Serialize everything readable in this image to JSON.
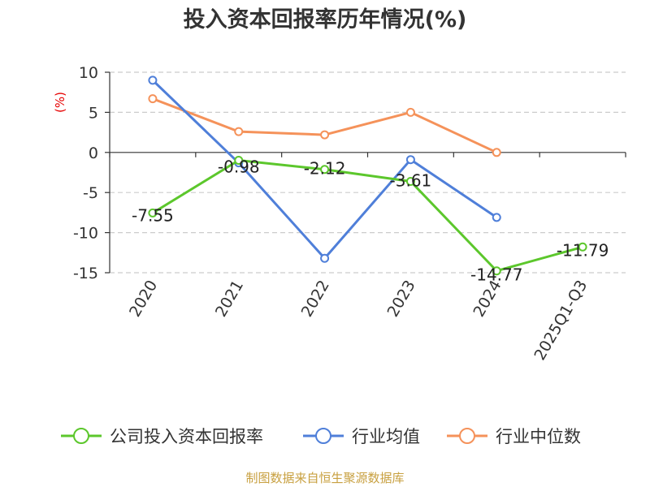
{
  "chart_data": {
    "type": "line",
    "title": "投入资本回报率历年情况(%)",
    "ylabel": "(%)",
    "ylabel_color": "#e60000",
    "categories": [
      "2020",
      "2021",
      "2022",
      "2023",
      "2024",
      "2025Q1-Q3"
    ],
    "ylim": [
      -15,
      10
    ],
    "yticks": [
      10,
      5,
      0,
      -5,
      -10,
      -15
    ],
    "ytick_labels": [
      "10",
      "5",
      "0",
      "-5",
      "-10",
      "-15"
    ],
    "grid": true,
    "legend_position": "bottom",
    "series": [
      {
        "name": "公司投入资本回报率",
        "color": "#5cc72c",
        "values": [
          -7.55,
          -0.98,
          -2.12,
          -3.61,
          -14.77,
          -11.79
        ],
        "labels": [
          "-7.55",
          "-0.98",
          "-2.12",
          "-3.61",
          "-14.77",
          "-11.79"
        ]
      },
      {
        "name": "行业均值",
        "color": "#4f7fd9",
        "values": [
          9.0,
          -1.3,
          -13.2,
          -0.9,
          -8.1,
          null
        ]
      },
      {
        "name": "行业中位数",
        "color": "#f5925a",
        "values": [
          6.7,
          2.6,
          2.2,
          5.0,
          0.0,
          null
        ]
      }
    ]
  },
  "source": "制图数据来自恒生聚源数据库",
  "source_color": "#c8a040"
}
